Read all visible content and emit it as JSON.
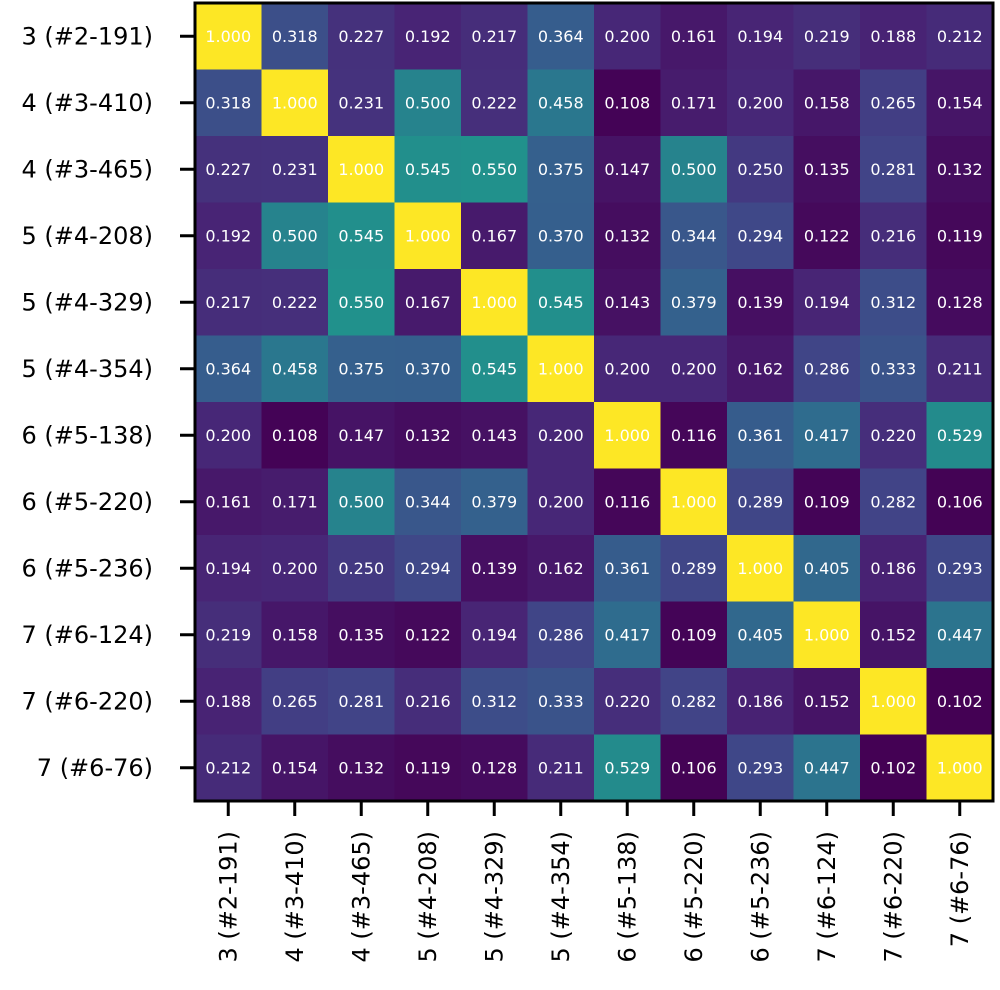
{
  "chart_data": {
    "type": "heatmap",
    "x_labels": [
      "3 (#2-191)",
      "4 (#3-410)",
      "4 (#3-465)",
      "5 (#4-208)",
      "5 (#4-329)",
      "5 (#4-354)",
      "6 (#5-138)",
      "6 (#5-220)",
      "6 (#5-236)",
      "7 (#6-124)",
      "7 (#6-220)",
      "7 (#6-76)"
    ],
    "y_labels": [
      "3 (#2-191)",
      "4 (#3-410)",
      "4 (#3-465)",
      "5 (#4-208)",
      "5 (#4-329)",
      "5 (#4-354)",
      "6 (#5-138)",
      "6 (#5-220)",
      "6 (#5-236)",
      "7 (#6-124)",
      "7 (#6-220)",
      "7 (#6-76)"
    ],
    "values": [
      [
        1.0,
        0.318,
        0.227,
        0.192,
        0.217,
        0.364,
        0.2,
        0.161,
        0.194,
        0.219,
        0.188,
        0.212
      ],
      [
        0.318,
        1.0,
        0.231,
        0.5,
        0.222,
        0.458,
        0.108,
        0.171,
        0.2,
        0.158,
        0.265,
        0.154
      ],
      [
        0.227,
        0.231,
        1.0,
        0.545,
        0.55,
        0.375,
        0.147,
        0.5,
        0.25,
        0.135,
        0.281,
        0.132
      ],
      [
        0.192,
        0.5,
        0.545,
        1.0,
        0.167,
        0.37,
        0.132,
        0.344,
        0.294,
        0.122,
        0.216,
        0.119
      ],
      [
        0.217,
        0.222,
        0.55,
        0.167,
        1.0,
        0.545,
        0.143,
        0.379,
        0.139,
        0.194,
        0.312,
        0.128
      ],
      [
        0.364,
        0.458,
        0.375,
        0.37,
        0.545,
        1.0,
        0.2,
        0.2,
        0.162,
        0.286,
        0.333,
        0.211
      ],
      [
        0.2,
        0.108,
        0.147,
        0.132,
        0.143,
        0.2,
        1.0,
        0.116,
        0.361,
        0.417,
        0.22,
        0.529
      ],
      [
        0.161,
        0.171,
        0.5,
        0.344,
        0.379,
        0.2,
        0.116,
        1.0,
        0.289,
        0.109,
        0.282,
        0.106
      ],
      [
        0.194,
        0.2,
        0.25,
        0.294,
        0.139,
        0.162,
        0.361,
        0.289,
        1.0,
        0.405,
        0.186,
        0.293
      ],
      [
        0.219,
        0.158,
        0.135,
        0.122,
        0.194,
        0.286,
        0.417,
        0.109,
        0.405,
        1.0,
        0.152,
        0.447
      ],
      [
        0.188,
        0.265,
        0.281,
        0.216,
        0.312,
        0.333,
        0.22,
        0.282,
        0.186,
        0.152,
        1.0,
        0.102
      ],
      [
        0.212,
        0.154,
        0.132,
        0.119,
        0.128,
        0.211,
        0.529,
        0.106,
        0.293,
        0.447,
        0.102,
        1.0
      ]
    ],
    "value_format": "0.000",
    "colormap": "viridis",
    "color_range": [
      0.102,
      1.0
    ],
    "colorbar": false,
    "grid": false
  }
}
